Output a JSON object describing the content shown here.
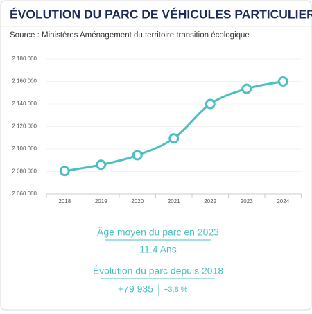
{
  "chart_data": {
    "type": "line",
    "title": "ÉVOLUTION DU PARC DE VÉHICULES PARTICULIERS",
    "subtitle": "Source : Ministères Aménagement du territoire transition écologique",
    "categories": [
      "2018",
      "2019",
      "2020",
      "2021",
      "2022",
      "2023",
      "2024"
    ],
    "series": [
      {
        "color": "#4cbfc3",
        "values": [
          2080500,
          2086000,
          2094500,
          2109500,
          2140000,
          2153500,
          2160000
        ]
      }
    ],
    "ylim": [
      2060000,
      2180000
    ],
    "yticks": [
      {
        "value": 2060000,
        "label": "2 060 000"
      },
      {
        "value": 2080000,
        "label": "2 080 000"
      },
      {
        "value": 2100000,
        "label": "2 100 000"
      },
      {
        "value": 2120000,
        "label": "2 120 000"
      },
      {
        "value": 2140000,
        "label": "2 140 000"
      },
      {
        "value": 2160000,
        "label": "2 160 000"
      },
      {
        "value": 2180000,
        "label": "2 180 000"
      }
    ],
    "grid": true
  },
  "stats": {
    "age_label": "Âge moyen du parc en 2023",
    "age_value": "11.4 Ans",
    "evolution_label": "Évolution du parc depuis 2018",
    "evolution_abs": "+79 935",
    "evolution_pct": "+3,8 %"
  }
}
